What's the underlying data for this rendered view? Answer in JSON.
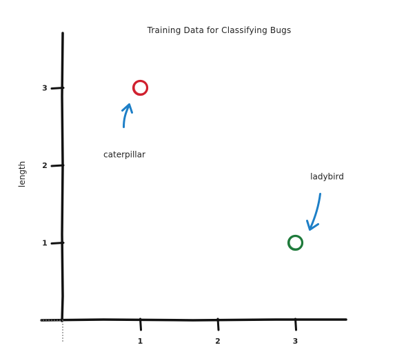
{
  "chart_data": {
    "type": "scatter",
    "title": "Training Data for Classifying Bugs",
    "xlabel": "",
    "ylabel": "length",
    "xlim": [
      0,
      3.6
    ],
    "ylim": [
      0,
      3.6
    ],
    "xticks": [
      "1",
      "2",
      "3"
    ],
    "yticks": [
      "1",
      "2",
      "3"
    ],
    "grid": false,
    "points": [
      {
        "x": 1,
        "y": 3,
        "color": "#d0202e",
        "annotation": "caterpillar"
      },
      {
        "x": 3,
        "y": 1,
        "color": "#1e7a3a",
        "annotation": "ladybird"
      }
    ],
    "arrow_color": "#1d7fc7"
  }
}
